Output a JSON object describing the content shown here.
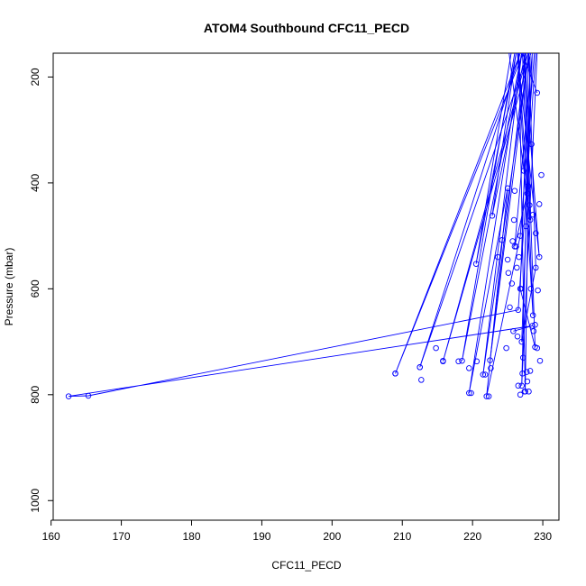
{
  "chart_data": {
    "type": "line",
    "title": "ATOM4 Southbound CFC11_PECD",
    "xlabel": "CFC11_PECD",
    "ylabel": "Pressure (mbar)",
    "xlim": [
      160.3,
      232.3
    ],
    "ylim": [
      1037,
      155
    ],
    "y_reversed": true,
    "x_ticks": [
      160,
      170,
      180,
      190,
      200,
      210,
      220,
      230
    ],
    "y_ticks": [
      200,
      400,
      600,
      800,
      1000
    ],
    "grid": false,
    "legend": "none",
    "series_color": "#0000ff",
    "marker": "open-circle",
    "series": [
      {
        "x": [
          226.5,
          227.8,
          226.0,
          228.5,
          227.0,
          229.0,
          228.0,
          226.8,
          228.9,
          227.5
        ],
        "y": [
          155,
          420,
          520,
          155,
          700,
          560,
          155,
          600,
          710,
          155
        ]
      },
      {
        "x": [
          225.2,
          228.2,
          227.3,
          229.5,
          226.4,
          228.6,
          227.1,
          229.2
        ],
        "y": [
          155,
          470,
          155,
          540,
          155,
          650,
          155,
          230
        ]
      },
      {
        "x": [
          225.5,
          220.5,
          226.2,
          222.8,
          227.5
        ],
        "y": [
          155,
          553,
          155,
          462,
          155
        ]
      },
      {
        "x": [
          226.0,
          218.5,
          227.0,
          221.5,
          228.0,
          222.5,
          227.6
        ],
        "y": [
          155,
          736,
          155,
          762,
          155,
          735,
          155
        ]
      },
      {
        "x": [
          227.2,
          209.0,
          226.8,
          212.5,
          227.9,
          215.8,
          228.3
        ],
        "y": [
          155,
          760,
          155,
          748,
          155,
          737,
          155
        ]
      },
      {
        "x": [
          225.8,
          228.5,
          162.5,
          165.3,
          226.5,
          229.0
        ],
        "y": [
          680,
          670,
          803,
          802,
          640,
          155
        ]
      },
      {
        "x": [
          227.0,
          219.5,
          225.0,
          222.0,
          226.8,
          228.8
        ],
        "y": [
          155,
          797,
          410,
          803,
          500,
          155
        ]
      },
      {
        "x": [
          226.6,
          227.5,
          228.2,
          227.0,
          229.2
        ],
        "y": [
          155,
          794,
          155,
          783,
          155
        ]
      }
    ],
    "scatter_points": {
      "x": [
        209.0,
        212.5,
        212.7,
        214.8,
        215.8,
        218.0,
        219.5,
        219.8,
        220.6,
        221.8,
        222.3,
        222.6,
        223.6,
        224.2,
        224.8,
        225.0,
        225.3,
        225.6,
        225.9,
        226.2,
        226.5,
        226.8,
        227.1,
        227.4,
        227.7,
        228.0,
        228.3,
        228.6,
        228.9,
        229.2,
        229.5,
        229.8,
        226.3,
        227.6,
        228.4,
        229.0,
        227.2,
        226.0,
        228.1,
        229.6,
        225.7,
        226.9,
        227.9,
        228.7,
        225.1,
        226.6,
        227.3,
        228.2,
        229.3,
        226.4,
        227.8
      ],
      "y": [
        760,
        748,
        772,
        712,
        736,
        737,
        750,
        797,
        737,
        762,
        803,
        750,
        540,
        508,
        712,
        545,
        635,
        590,
        470,
        520,
        783,
        800,
        760,
        794,
        757,
        794,
        600,
        460,
        668,
        712,
        440,
        385,
        560,
        482,
        327,
        495,
        730,
        415,
        442,
        736,
        510,
        600,
        406,
        680,
        570,
        540,
        377,
        755,
        603,
        690,
        775
      ]
    }
  }
}
